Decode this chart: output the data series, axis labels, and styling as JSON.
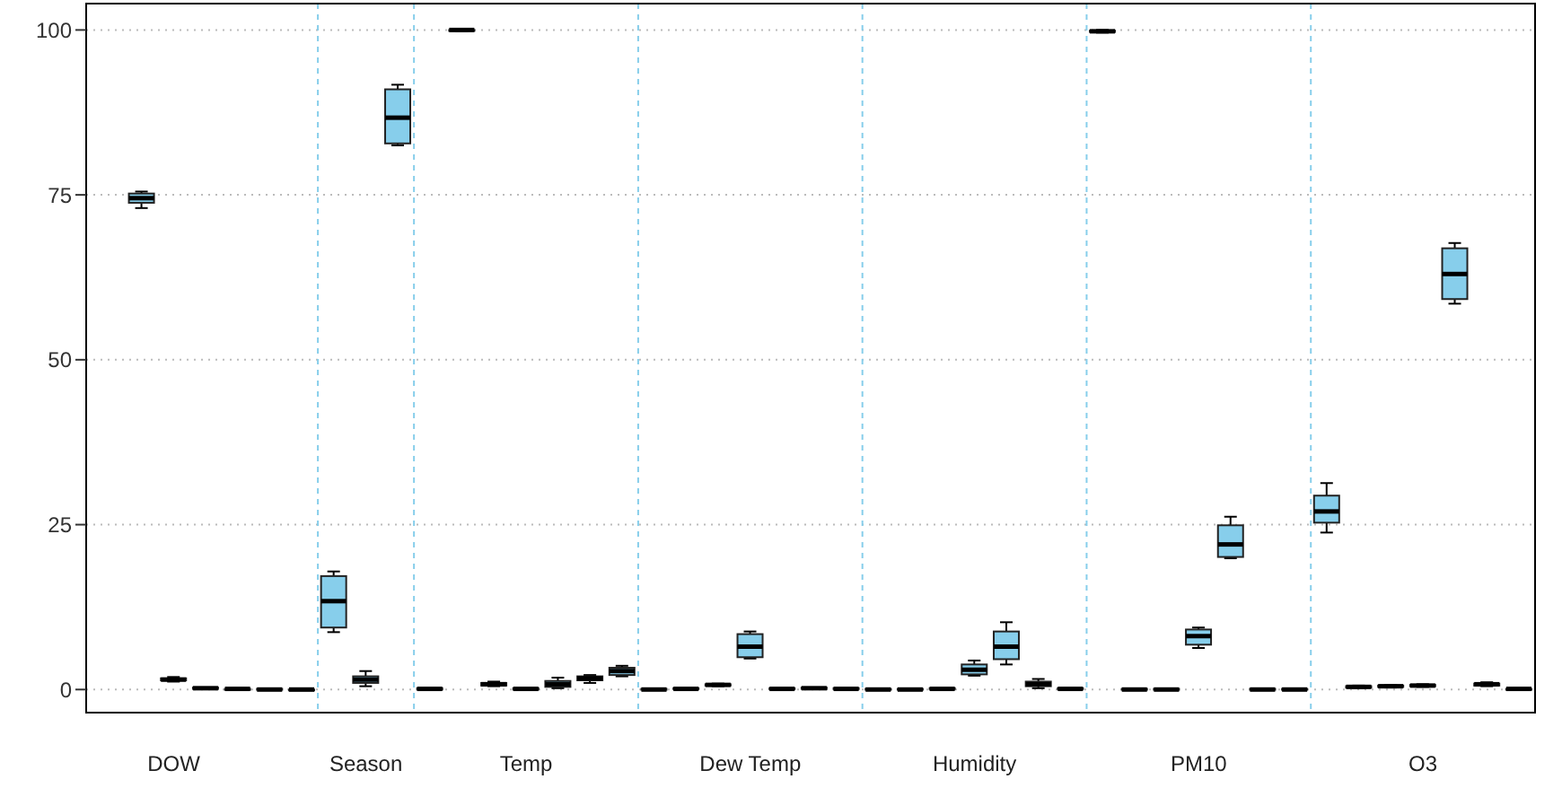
{
  "chart_data": {
    "type": "box",
    "color": "#87ceeb",
    "categories": [
      null,
      "DOW",
      null,
      null,
      null,
      null,
      null,
      "Season",
      null,
      null,
      null,
      null,
      "Temp",
      null,
      null,
      null,
      null,
      null,
      null,
      "Dew Temp",
      null,
      null,
      null,
      null,
      null,
      null,
      "Humidity",
      null,
      null,
      null,
      null,
      null,
      null,
      "PM10",
      null,
      null,
      null,
      null,
      null,
      null,
      "O3",
      null,
      null,
      null
    ],
    "boxes": [
      {
        "low": 73,
        "q1": 73.8,
        "median": 74.5,
        "q3": 75.2,
        "high": 75.5
      },
      {
        "low": 1.2,
        "q1": 1.4,
        "median": 1.5,
        "q3": 1.7,
        "high": 1.9
      },
      {
        "low": 0.1,
        "q1": 0.1,
        "median": 0.2,
        "q3": 0.3,
        "high": 0.3
      },
      {
        "low": 0,
        "q1": 0,
        "median": 0.1,
        "q3": 0.1,
        "high": 0.2
      },
      {
        "low": 0,
        "q1": 0,
        "median": 0,
        "q3": 0.1,
        "high": 0.1
      },
      {
        "low": 0,
        "q1": 0,
        "median": 0,
        "q3": 0,
        "high": 0.1
      },
      {
        "low": 8.7,
        "q1": 9.4,
        "median": 13.4,
        "q3": 17.2,
        "high": 17.9
      },
      {
        "low": 0.5,
        "q1": 1,
        "median": 1.5,
        "q3": 2,
        "high": 2.8
      },
      {
        "low": 82.5,
        "q1": 82.8,
        "median": 86.7,
        "q3": 91,
        "high": 91.7
      },
      {
        "low": 0,
        "q1": 0,
        "median": 0.1,
        "q3": 0.2,
        "high": 0.2
      },
      {
        "low": 99.8,
        "q1": 99.9,
        "median": 100,
        "q3": 100,
        "high": 100
      },
      {
        "low": 0.5,
        "q1": 0.6,
        "median": 0.8,
        "q3": 1,
        "high": 1.2
      },
      {
        "low": 0,
        "q1": 0,
        "median": 0.1,
        "q3": 0.2,
        "high": 0.2
      },
      {
        "low": 0.2,
        "q1": 0.4,
        "median": 0.8,
        "q3": 1.3,
        "high": 1.8
      },
      {
        "low": 1,
        "q1": 1.4,
        "median": 1.7,
        "q3": 2,
        "high": 2.2
      },
      {
        "low": 2,
        "q1": 2.2,
        "median": 2.8,
        "q3": 3.3,
        "high": 3.6
      },
      {
        "low": 0,
        "q1": 0,
        "median": 0,
        "q3": 0.1,
        "high": 0.1
      },
      {
        "low": 0,
        "q1": 0.1,
        "median": 0.1,
        "q3": 0.2,
        "high": 0.2
      },
      {
        "low": 0.5,
        "q1": 0.6,
        "median": 0.7,
        "q3": 0.8,
        "high": 0.9
      },
      {
        "low": 4.7,
        "q1": 4.9,
        "median": 6.5,
        "q3": 8.4,
        "high": 8.8
      },
      {
        "low": 0,
        "q1": 0.1,
        "median": 0.1,
        "q3": 0.2,
        "high": 0.2
      },
      {
        "low": 0.1,
        "q1": 0.1,
        "median": 0.2,
        "q3": 0.3,
        "high": 0.3
      },
      {
        "low": 0,
        "q1": 0.1,
        "median": 0.1,
        "q3": 0.2,
        "high": 0.2
      },
      {
        "low": 0,
        "q1": 0,
        "median": 0,
        "q3": 0.1,
        "high": 0.1
      },
      {
        "low": 0,
        "q1": 0,
        "median": 0,
        "q3": 0.1,
        "high": 0.1
      },
      {
        "low": 0,
        "q1": 0.1,
        "median": 0.1,
        "q3": 0.2,
        "high": 0.2
      },
      {
        "low": 2.1,
        "q1": 2.3,
        "median": 3,
        "q3": 3.8,
        "high": 4.4
      },
      {
        "low": 3.8,
        "q1": 4.6,
        "median": 6.5,
        "q3": 8.8,
        "high": 10.2
      },
      {
        "low": 0.2,
        "q1": 0.5,
        "median": 0.8,
        "q3": 1.2,
        "high": 1.6
      },
      {
        "low": 0,
        "q1": 0.1,
        "median": 0.1,
        "q3": 0.2,
        "high": 0.2
      },
      {
        "low": 99.6,
        "q1": 99.7,
        "median": 99.8,
        "q3": 99.9,
        "high": 100
      },
      {
        "low": 0,
        "q1": 0,
        "median": 0,
        "q3": 0.1,
        "high": 0.1
      },
      {
        "low": 0,
        "q1": 0,
        "median": 0,
        "q3": 0.1,
        "high": 0.1
      },
      {
        "low": 6.3,
        "q1": 6.8,
        "median": 8.1,
        "q3": 9.1,
        "high": 9.4
      },
      {
        "low": 19.9,
        "q1": 20.1,
        "median": 22,
        "q3": 24.9,
        "high": 26.2
      },
      {
        "low": 0,
        "q1": 0,
        "median": 0,
        "q3": 0.1,
        "high": 0.1
      },
      {
        "low": 0,
        "q1": 0,
        "median": 0,
        "q3": 0.1,
        "high": 0.1
      },
      {
        "low": 23.8,
        "q1": 25.3,
        "median": 27,
        "q3": 29.4,
        "high": 31.3
      },
      {
        "low": 0.2,
        "q1": 0.3,
        "median": 0.4,
        "q3": 0.5,
        "high": 0.6
      },
      {
        "low": 0.3,
        "q1": 0.4,
        "median": 0.5,
        "q3": 0.6,
        "high": 0.7
      },
      {
        "low": 0.4,
        "q1": 0.5,
        "median": 0.6,
        "q3": 0.7,
        "high": 0.8
      },
      {
        "low": 58.5,
        "q1": 59.2,
        "median": 63,
        "q3": 66.9,
        "high": 67.7
      },
      {
        "low": 0.5,
        "q1": 0.6,
        "median": 0.8,
        "q3": 0.9,
        "high": 1.1
      },
      {
        "low": 0,
        "q1": 0,
        "median": 0.1,
        "q3": 0.1,
        "high": 0.2
      }
    ],
    "ylim": [
      -3.5,
      104
    ],
    "yticks": [
      0,
      25,
      50,
      75,
      100
    ],
    "grid": "y"
  }
}
